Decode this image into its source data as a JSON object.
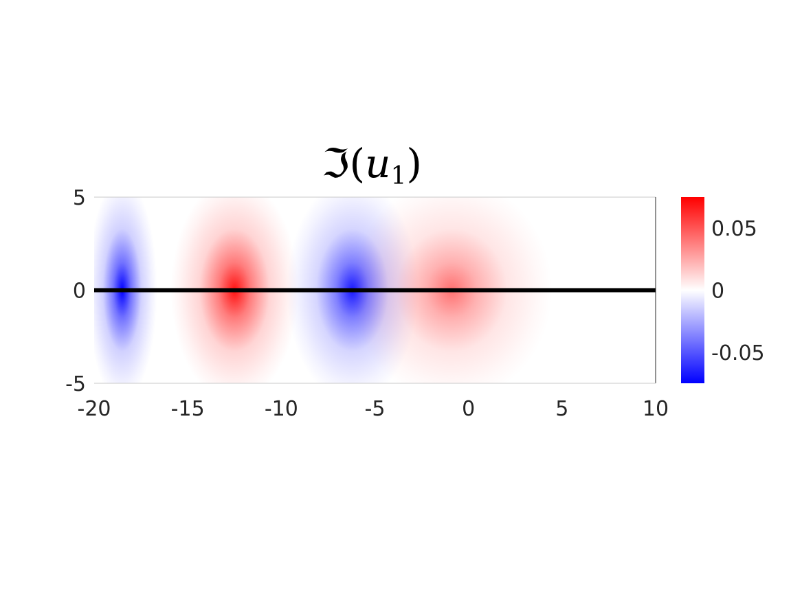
{
  "chart_data": {
    "type": "heatmap",
    "title": {
      "prefix": "ℑ(",
      "var": "u",
      "sub": "1",
      "suffix": ")"
    },
    "xlabel": "",
    "ylabel": "",
    "xlim": [
      -20,
      10
    ],
    "ylim": [
      -5,
      5
    ],
    "x_ticks": [
      {
        "value": -20,
        "label": "-20"
      },
      {
        "value": -15,
        "label": "-15"
      },
      {
        "value": -10,
        "label": "-10"
      },
      {
        "value": -5,
        "label": "-5"
      },
      {
        "value": 0,
        "label": "0"
      },
      {
        "value": 5,
        "label": "5"
      },
      {
        "value": 10,
        "label": "10"
      }
    ],
    "y_ticks": [
      {
        "value": 5,
        "label": "5"
      },
      {
        "value": 0,
        "label": "0"
      },
      {
        "value": -5,
        "label": "-5"
      }
    ],
    "colorbar": {
      "clim": [
        -0.075,
        0.075
      ],
      "ticks": [
        {
          "value": 0.05,
          "label": "0.05"
        },
        {
          "value": 0,
          "label": "0"
        },
        {
          "value": -0.05,
          "label": "-0.05"
        }
      ],
      "colors": {
        "low": "#0000ff",
        "mid": "#ffffff",
        "high": "#ff0000"
      }
    },
    "lobes": [
      {
        "x_center": -18.5,
        "x_from": -20,
        "x_to": -16.8,
        "peak": -0.075
      },
      {
        "x_center": -12.5,
        "x_from": -15.6,
        "x_to": -9.6,
        "peak": 0.07
      },
      {
        "x_center": -6.2,
        "x_from": -9.4,
        "x_to": -3.2,
        "peak": -0.068
      },
      {
        "x_center": -0.9,
        "x_from": -3.0,
        "x_to": 4.0,
        "peak": 0.042
      }
    ],
    "overlay_line": {
      "y": 0,
      "x_from": -20,
      "x_to": 10,
      "color": "#000000"
    },
    "grid": false,
    "legend": "none"
  }
}
